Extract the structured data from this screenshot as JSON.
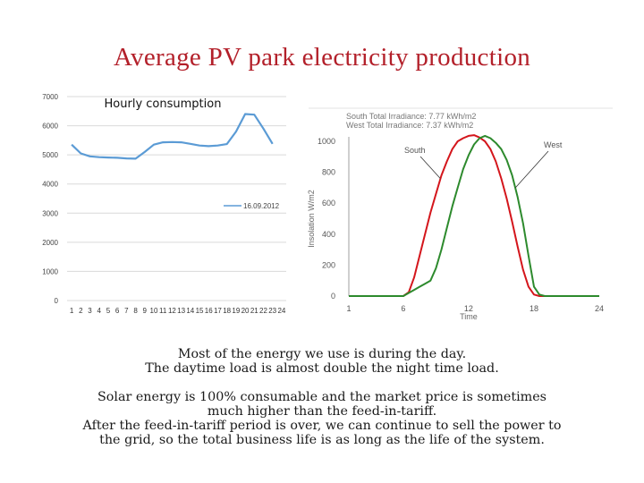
{
  "slide": {
    "title": "Average PV park electricity production",
    "paragraph1": [
      "Most of the energy we use is during the day.",
      "The daytime load is almost double the night time load."
    ],
    "paragraph2": [
      "Solar energy is 100% consumable and the market price is sometimes",
      "much higher than the feed-in-tariff.",
      "After the feed-in-tariff period is over, we can continue to sell the power to",
      "the grid, so the total business life is as long as the life of the system."
    ]
  },
  "chart_data": [
    {
      "type": "line",
      "title": "Hourly consumption",
      "xlabel": "",
      "ylabel": "",
      "categories": [
        "1",
        "2",
        "3",
        "4",
        "5",
        "6",
        "7",
        "8",
        "9",
        "10",
        "11",
        "12",
        "13",
        "14",
        "15",
        "16",
        "17",
        "18",
        "19",
        "20",
        "21",
        "22",
        "23",
        "24"
      ],
      "ylim": [
        0,
        7000
      ],
      "yticks": [
        0,
        1000,
        2000,
        3000,
        4000,
        5000,
        6000,
        7000
      ],
      "grid": true,
      "legend": "right",
      "series": [
        {
          "name": "16.09.2012",
          "color": "#5b9bd5",
          "values": [
            5350,
            5050,
            4950,
            4920,
            4910,
            4900,
            4880,
            4870,
            5100,
            5350,
            5430,
            5440,
            5430,
            5380,
            5320,
            5300,
            5320,
            5370,
            5800,
            6400,
            6380,
            5900,
            5380,
            null
          ]
        }
      ]
    },
    {
      "type": "line",
      "title": "",
      "subtitle_lines": [
        "South Total Irradiance: 7.77 kWh/m2",
        "West Total Irradiance: 7.37 kWh/m2"
      ],
      "xlabel": "Time",
      "ylabel": "Insolation W/m2",
      "xlim": [
        1,
        24
      ],
      "ylim": [
        0,
        1000
      ],
      "yticks": [
        0,
        200,
        400,
        600,
        800,
        1000
      ],
      "xticks": [
        1,
        6,
        12,
        18,
        24
      ],
      "grid": false,
      "annotations": [
        "South",
        "West"
      ],
      "series": [
        {
          "name": "South",
          "color": "#d4161c",
          "x": [
            1,
            5,
            6,
            6.5,
            7,
            7.5,
            8,
            8.5,
            9,
            9.5,
            10,
            10.5,
            11,
            11.5,
            12,
            12.5,
            13,
            13.5,
            14,
            14.5,
            15,
            15.5,
            16,
            16.5,
            17,
            17.5,
            18,
            18.5,
            19,
            24
          ],
          "y": [
            0,
            0,
            0,
            25,
            120,
            260,
            400,
            540,
            660,
            780,
            870,
            950,
            1000,
            1020,
            1035,
            1040,
            1025,
            1000,
            950,
            870,
            760,
            630,
            480,
            320,
            170,
            60,
            10,
            0,
            0,
            0
          ]
        },
        {
          "name": "West",
          "color": "#2d8a2d",
          "x": [
            1,
            5,
            6,
            6.5,
            7,
            7.5,
            8,
            8.5,
            9,
            9.5,
            10,
            10.5,
            11,
            11.5,
            12,
            12.5,
            13,
            13.5,
            14,
            14.5,
            15,
            15.5,
            16,
            16.5,
            17,
            17.5,
            18,
            18.5,
            19,
            24
          ],
          "y": [
            0,
            0,
            0,
            20,
            40,
            60,
            80,
            100,
            180,
            300,
            440,
            580,
            700,
            820,
            910,
            980,
            1020,
            1035,
            1020,
            990,
            950,
            880,
            780,
            640,
            470,
            260,
            60,
            10,
            0,
            0
          ]
        }
      ]
    }
  ]
}
